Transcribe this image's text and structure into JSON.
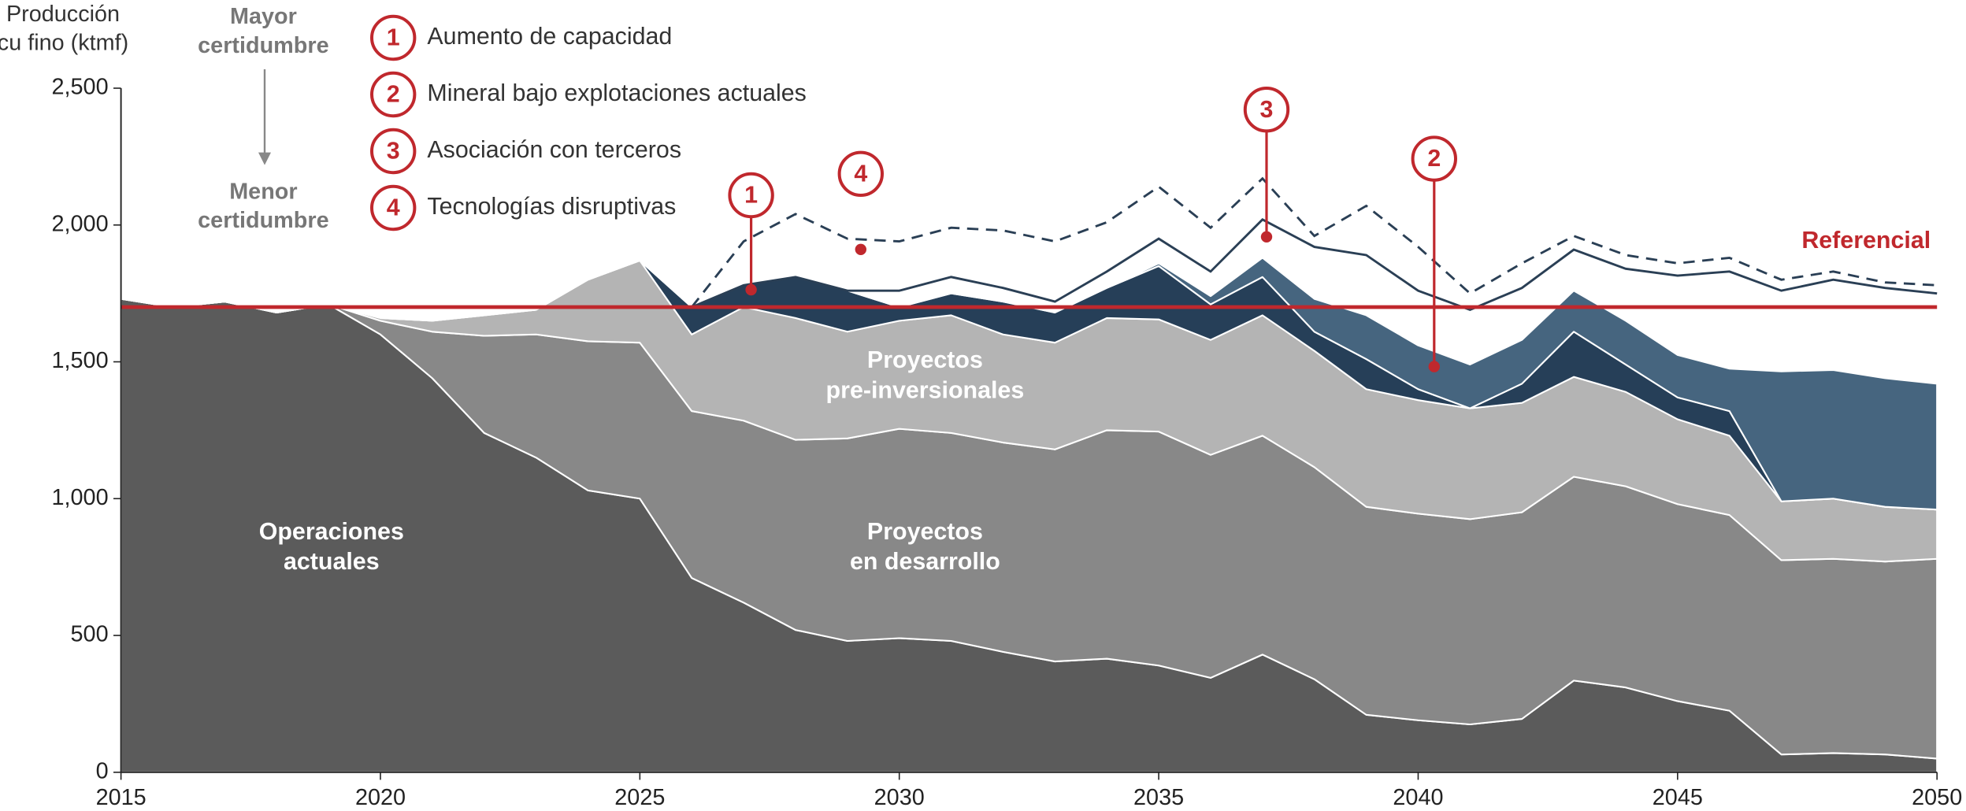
{
  "chart_data": {
    "type": "area",
    "y_label": [
      "Producción",
      "cu fino (ktmf)"
    ],
    "top_note": [
      "Mayor",
      "certidumbre"
    ],
    "bottom_note": [
      "Menor",
      "certidumbre"
    ],
    "x": [
      2015,
      2016,
      2017,
      2018,
      2019,
      2020,
      2021,
      2022,
      2023,
      2024,
      2025,
      2026,
      2027,
      2028,
      2029,
      2030,
      2031,
      2032,
      2033,
      2034,
      2035,
      2036,
      2037,
      2038,
      2039,
      2040,
      2041,
      2042,
      2043,
      2044,
      2045,
      2046,
      2047,
      2048,
      2049,
      2050
    ],
    "xlim": [
      2015,
      2050
    ],
    "xticks": [
      2015,
      2020,
      2025,
      2030,
      2035,
      2040,
      2045,
      2050
    ],
    "ylim": [
      0,
      2500
    ],
    "yticks": [
      0,
      500,
      {
        "value": 1000,
        "label": "1,000"
      },
      {
        "value": 1500,
        "label": "1,500"
      },
      {
        "value": 2000,
        "label": "2,000"
      },
      {
        "value": 2500,
        "label": "2,500"
      }
    ],
    "series": [
      {
        "label": [
          "Operaciones",
          "actuales"
        ],
        "color": "#5b5b5b",
        "values": [
          1730,
          1700,
          1720,
          1680,
          1710,
          1600,
          1440,
          1240,
          1150,
          1030,
          1000,
          710,
          620,
          520,
          480,
          490,
          480,
          440,
          405,
          415,
          390,
          345,
          430,
          340,
          210,
          190,
          175,
          195,
          335,
          310,
          260,
          225,
          65,
          70,
          65,
          50
        ]
      },
      {
        "label": [
          "Proyectos",
          "en desarrollo"
        ],
        "color": "#888888",
        "values": [
          0,
          0,
          0,
          0,
          0,
          50,
          170,
          355,
          450,
          545,
          570,
          610,
          665,
          695,
          740,
          765,
          760,
          765,
          775,
          835,
          855,
          815,
          800,
          775,
          760,
          755,
          750,
          755,
          745,
          735,
          720,
          715,
          710,
          710,
          705,
          730
        ]
      },
      {
        "label": [
          "Proyectos",
          "pre-inversionales"
        ],
        "color": "#b4b4b4",
        "values": [
          0,
          0,
          0,
          0,
          0,
          10,
          40,
          75,
          90,
          225,
          300,
          280,
          415,
          445,
          390,
          395,
          430,
          395,
          390,
          410,
          410,
          420,
          440,
          425,
          430,
          415,
          405,
          400,
          365,
          345,
          310,
          290,
          215,
          220,
          200,
          180
        ]
      },
      {
        "number": "1",
        "name": "Aumento de capacidad",
        "color": "#263f58",
        "values": [
          0,
          0,
          0,
          0,
          0,
          0,
          0,
          0,
          0,
          0,
          0,
          100,
          80,
          150,
          150,
          50,
          80,
          120,
          110,
          110,
          195,
          130,
          140,
          70,
          110,
          40,
          0,
          70,
          165,
          100,
          80,
          90,
          0,
          0,
          0,
          0
        ]
      },
      {
        "number": "2",
        "name": "Mineral bajo explotaciones actuales",
        "color": "#46657f",
        "values": [
          0,
          0,
          0,
          0,
          0,
          0,
          0,
          0,
          0,
          0,
          0,
          0,
          0,
          0,
          0,
          0,
          0,
          0,
          0,
          0,
          10,
          30,
          70,
          120,
          160,
          160,
          160,
          160,
          150,
          160,
          155,
          155,
          475,
          470,
          470,
          460
        ]
      }
    ],
    "lines": [
      {
        "number": "3",
        "name": "Asociación con terceros",
        "color": "#2a3f55",
        "style": "solid",
        "values": [
          null,
          null,
          null,
          null,
          null,
          null,
          null,
          null,
          null,
          null,
          null,
          1700,
          1780,
          1810,
          1760,
          1760,
          1810,
          1770,
          1720,
          1830,
          1950,
          1830,
          2020,
          1920,
          1890,
          1760,
          1690,
          1770,
          1910,
          1840,
          1815,
          1830,
          1760,
          1800,
          1770,
          1750
        ]
      },
      {
        "number": "4",
        "name": "Tecnologías disruptivas",
        "color": "#2a3f55",
        "style": "dashed",
        "values": [
          null,
          null,
          null,
          null,
          null,
          null,
          null,
          null,
          null,
          null,
          null,
          1700,
          1940,
          2040,
          1950,
          1940,
          1990,
          1980,
          1940,
          2010,
          2140,
          1990,
          2170,
          1960,
          2070,
          1920,
          1750,
          1860,
          1960,
          1890,
          1860,
          1880,
          1800,
          1830,
          1790,
          1780
        ]
      }
    ],
    "reference": {
      "label": "Referencial",
      "value": 1700,
      "color": "#c0282d"
    },
    "annotation_color": "#c0282d"
  }
}
